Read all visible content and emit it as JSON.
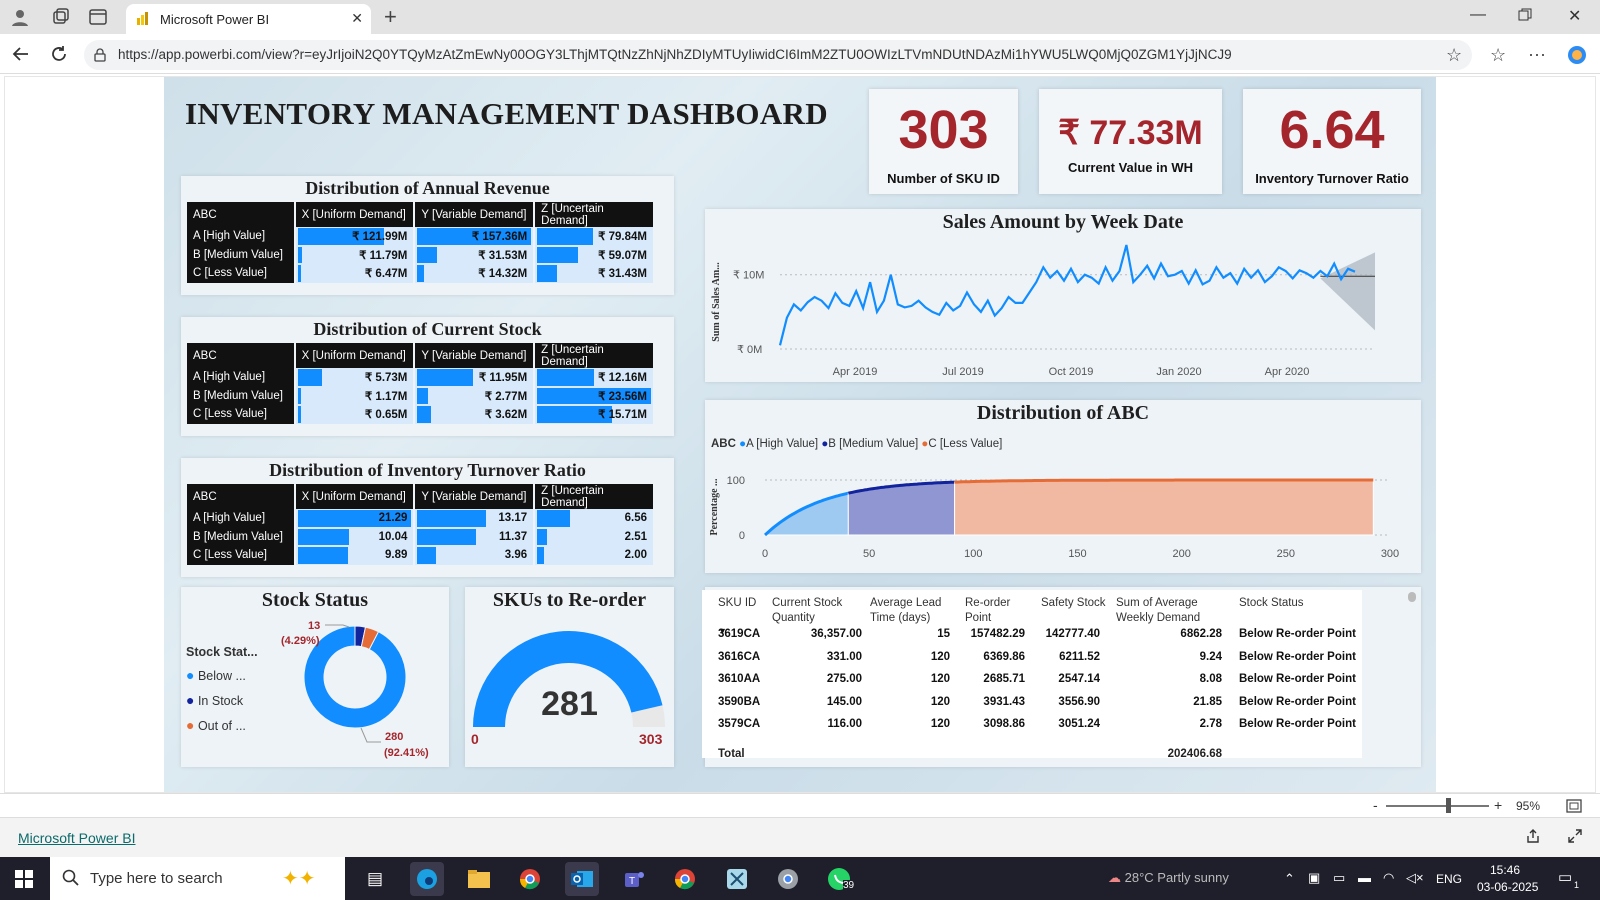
{
  "browser": {
    "tab_title": "Microsoft Power BI",
    "tab_close": "✕",
    "new_tab": "+",
    "url": "https://app.powerbi.com/view?r=eyJrIjoiN2Q0YTQyMzAtZmEwNy00OGY3LThjMTQtNzZhNjNhZDIyMTUyIiwidCI6ImM2ZTU0OWIzLTVmNDUtNDAzMi1hYWU5LWQ0MjQ0ZGM1YjJjNCJ9"
  },
  "dashboard": {
    "title": "INVENTORY MANAGEMENT DASHBOARD",
    "kpis": [
      {
        "value": "303",
        "label": "Number of SKU ID"
      },
      {
        "value": "₹ 77.33M",
        "label": "Current Value in WH"
      },
      {
        "value": "6.64",
        "label": "Inventory Turnover Ratio"
      }
    ],
    "matrix_headers": [
      "ABC",
      "X [Uniform Demand]",
      "Y [Variable Demand]",
      "Z [Uncertain Demand]"
    ],
    "row_labels": [
      "A [High Value]",
      "B [Medium Value]",
      "C [Less Value]"
    ],
    "revenue": {
      "title": "Distribution of Annual Revenue",
      "cells": [
        [
          "₹ 121.99M",
          "₹ 157.36M",
          "₹ 79.84M"
        ],
        [
          "₹ 11.79M",
          "₹ 31.53M",
          "₹ 59.07M"
        ],
        [
          "₹ 6.47M",
          "₹ 14.32M",
          "₹ 31.43M"
        ]
      ],
      "fills": [
        [
          0.77,
          1.0,
          0.51
        ],
        [
          0.07,
          0.2,
          0.38
        ],
        [
          0.04,
          0.09,
          0.2
        ]
      ]
    },
    "stock": {
      "title": "Distribution of Current Stock",
      "cells": [
        [
          "₹ 5.73M",
          "₹ 11.95M",
          "₹ 12.16M"
        ],
        [
          "₹ 1.17M",
          "₹ 2.77M",
          "₹ 23.56M"
        ],
        [
          "₹ 0.65M",
          "₹ 3.62M",
          "₹ 15.71M"
        ]
      ],
      "fills": [
        [
          0.24,
          0.51,
          0.52
        ],
        [
          0.05,
          0.12,
          1.0
        ],
        [
          0.03,
          0.15,
          0.67
        ]
      ]
    },
    "turnover": {
      "title": "Distribution of Inventory Turnover Ratio",
      "cells": [
        [
          "21.29",
          "13.17",
          "6.56"
        ],
        [
          "10.04",
          "11.37",
          "2.51"
        ],
        [
          "9.89",
          "3.96",
          "2.00"
        ]
      ],
      "fills": [
        [
          1.0,
          0.62,
          0.31
        ],
        [
          0.47,
          0.53,
          0.12
        ],
        [
          0.46,
          0.19,
          0.09
        ]
      ]
    },
    "stock_status": {
      "title": "Stock Status",
      "legend_title": "Stock Stat...",
      "legend": [
        {
          "label": "Below ...",
          "color": "#118dff"
        },
        {
          "label": "In Stock",
          "color": "#12239e"
        },
        {
          "label": "Out of ...",
          "color": "#e66c37"
        }
      ],
      "label_small_value": "13",
      "label_small_pct": "(4.29%)",
      "label_big_value": "280",
      "label_big_pct": "(92.41%)"
    },
    "reorder": {
      "title": "SKUs to Re-order",
      "value": "281",
      "min": "0",
      "max": "303"
    },
    "sales": {
      "title": "Sales Amount by Week Date",
      "ylabel": "Sum of Sales Am...",
      "yticks": [
        "₹ 10M",
        "₹ 0M"
      ],
      "xticks": [
        "Apr 2019",
        "Jul 2019",
        "Oct 2019",
        "Jan 2020",
        "Apr 2020"
      ]
    },
    "abc": {
      "title": "Distribution of ABC",
      "legend_title": "ABC",
      "legend": [
        {
          "label": "A [High Value]",
          "color": "#118dff"
        },
        {
          "label": "B [Medium Value]",
          "color": "#12239e"
        },
        {
          "label": "C [Less Value]",
          "color": "#e66c37"
        }
      ],
      "ylabel": "Percentage ...",
      "yticks": [
        "100",
        "0"
      ],
      "xticks": [
        "0",
        "50",
        "100",
        "150",
        "200",
        "250",
        "300"
      ]
    },
    "table": {
      "headers": [
        "SKU ID",
        "Current Stock Quantity",
        "Average Lead Time (days)",
        "Re-order Point",
        "Safety Stock",
        "Sum of Average Weekly Demand",
        "Stock Status"
      ],
      "rows": [
        [
          "3619CA",
          "36,357.00",
          "15",
          "157482.29",
          "142777.40",
          "6862.28",
          "Below Re-order Point"
        ],
        [
          "3616CA",
          "331.00",
          "120",
          "6369.86",
          "6211.52",
          "9.24",
          "Below Re-order Point"
        ],
        [
          "3610AA",
          "275.00",
          "120",
          "2685.71",
          "2547.14",
          "8.08",
          "Below Re-order Point"
        ],
        [
          "3590BA",
          "145.00",
          "120",
          "3931.43",
          "3556.90",
          "21.85",
          "Below Re-order Point"
        ],
        [
          "3579CA",
          "116.00",
          "120",
          "3098.86",
          "3051.24",
          "2.78",
          "Below Re-order Point"
        ]
      ],
      "total_label": "Total",
      "total_value": "202406.68"
    }
  },
  "chart_data": [
    {
      "type": "line",
      "title": "Sales Amount by Week Date",
      "ylabel": "Sum of Sales Am...",
      "x_start": "2019-02",
      "x_end": "2020-06",
      "ylim": [
        0,
        14
      ],
      "y_unit": "₹ M",
      "values": [
        0.5,
        4.2,
        6.0,
        5.2,
        6.3,
        7.0,
        6.5,
        5.5,
        7.5,
        6.2,
        5.8,
        7.8,
        5.5,
        9.0,
        5.0,
        6.5,
        10.0,
        6.0,
        5.6,
        5.8,
        6.5,
        5.6,
        5.0,
        4.6,
        6.2,
        5.2,
        5.8,
        7.6,
        6.0,
        5.0,
        6.5,
        4.5,
        5.5,
        7.0,
        6.2,
        6.2,
        7.6,
        9.0,
        11.0,
        9.6,
        10.5,
        9.2,
        10.8,
        9.0,
        10.0,
        9.6,
        8.8,
        11.0,
        9.2,
        10.5,
        14.0,
        9.0,
        10.0,
        11.2,
        9.5,
        11.5,
        9.8,
        10.0,
        10.5,
        8.8,
        10.6,
        8.7,
        9.2,
        11.0,
        9.6,
        10.2,
        8.8,
        10.8,
        9.6,
        10.6,
        9.0,
        9.8,
        11.0,
        10.5,
        9.5,
        10.6,
        10.2,
        9.6,
        10.5,
        9.8,
        11.5,
        9.4,
        10.8,
        10.4
      ],
      "forecast_shaded": true
    },
    {
      "type": "area",
      "title": "Distribution of ABC",
      "ylabel": "Percentage ...",
      "xlim": [
        0,
        300
      ],
      "ylim": [
        0,
        100
      ],
      "series": [
        {
          "name": "A [High Value]",
          "x_range": [
            0,
            40
          ],
          "y_end": 70
        },
        {
          "name": "B [Medium Value]",
          "x_range": [
            40,
            91
          ],
          "y_end": 90
        },
        {
          "name": "C [Less Value]",
          "x_range": [
            91,
            292
          ],
          "y_end": 100
        }
      ]
    },
    {
      "type": "pie",
      "title": "Stock Status",
      "series": [
        {
          "name": "Below ...",
          "value": 280
        },
        {
          "name": "In Stock",
          "value": 10
        },
        {
          "name": "Out of ...",
          "value": 13
        }
      ]
    },
    {
      "type": "gauge",
      "title": "SKUs to Re-order",
      "value": 281,
      "min": 0,
      "max": 303
    }
  ],
  "pbi": {
    "zoom": "95%",
    "zoom_minus": "-",
    "zoom_plus": "+",
    "zoom_level": 0.6,
    "footer_link": "Microsoft Power BI"
  },
  "taskbar": {
    "search_placeholder": "Type here to search",
    "weather": "28°C  Partly sunny",
    "lang": "ENG",
    "time": "15:46",
    "date": "03-06-2025",
    "badge": "39",
    "notif": "1"
  }
}
